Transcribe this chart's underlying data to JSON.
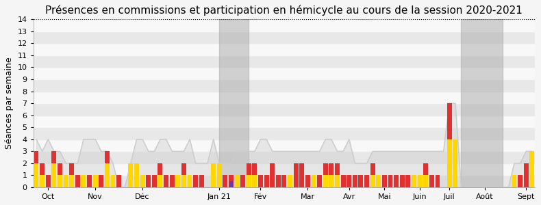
{
  "title": "Présences en commissions et participation en hémicycle au cours de la session 2020-2021",
  "ylabel": "Séances par semaine",
  "ylim": [
    0,
    14
  ],
  "yticks": [
    0,
    1,
    2,
    3,
    4,
    5,
    6,
    7,
    8,
    9,
    10,
    11,
    12,
    13,
    14
  ],
  "xlabel_months": [
    "Oct",
    "Nov",
    "Déc",
    "Jan 21",
    "Fév",
    "Mar",
    "Avr",
    "Mai",
    "Juin",
    "Juil",
    "Août",
    "Sept"
  ],
  "background_color": "#f5f5f5",
  "shade_regions": [
    {
      "xstart": 31,
      "xend": 36
    },
    {
      "xstart": 72,
      "xend": 79
    }
  ],
  "gray_line": [
    4,
    3,
    4,
    3,
    3,
    2,
    2,
    2,
    4,
    4,
    4,
    3,
    3,
    2,
    0,
    0,
    2,
    4,
    4,
    3,
    3,
    4,
    4,
    3,
    3,
    3,
    4,
    2,
    2,
    2,
    4,
    2,
    2,
    2,
    3,
    3,
    3,
    3,
    4,
    4,
    3,
    3,
    3,
    3,
    3,
    3,
    3,
    3,
    3,
    4,
    4,
    3,
    3,
    4,
    2,
    2,
    2,
    3,
    3,
    3,
    3,
    3,
    3,
    3,
    3,
    3,
    3,
    3,
    3,
    3,
    7,
    7,
    0,
    0,
    0,
    0,
    0,
    0,
    0,
    0,
    0,
    2,
    2,
    3,
    3
  ],
  "yellow_bars": [
    2,
    1,
    0,
    2,
    1,
    1,
    1,
    0,
    1,
    0,
    1,
    0,
    2,
    1,
    0,
    0,
    2,
    2,
    1,
    0,
    0,
    1,
    0,
    0,
    1,
    1,
    1,
    0,
    0,
    0,
    2,
    2,
    0,
    0,
    1,
    0,
    1,
    1,
    0,
    0,
    0,
    0,
    0,
    1,
    0,
    0,
    0,
    1,
    0,
    1,
    1,
    1,
    0,
    0,
    0,
    0,
    0,
    1,
    1,
    0,
    0,
    0,
    0,
    0,
    1,
    1,
    1,
    0,
    0,
    0,
    4,
    4,
    0,
    0,
    0,
    0,
    0,
    0,
    0,
    0,
    0,
    1,
    0,
    0,
    3
  ],
  "red_bars": [
    3,
    2,
    1,
    3,
    2,
    1,
    2,
    1,
    1,
    1,
    1,
    1,
    3,
    1,
    1,
    0,
    2,
    2,
    1,
    1,
    1,
    2,
    1,
    1,
    1,
    2,
    1,
    1,
    1,
    0,
    2,
    2,
    1,
    1,
    1,
    1,
    2,
    2,
    1,
    1,
    2,
    1,
    1,
    1,
    2,
    2,
    1,
    1,
    1,
    2,
    2,
    2,
    1,
    1,
    1,
    1,
    1,
    2,
    1,
    1,
    1,
    1,
    1,
    1,
    1,
    1,
    2,
    1,
    1,
    0,
    7,
    4,
    0,
    0,
    0,
    0,
    0,
    0,
    0,
    0,
    0,
    1,
    1,
    2,
    3
  ],
  "blue_bar_idx": 33,
  "blue_bar_val": 0.5,
  "stripe_colors": [
    "#e8e8e8",
    "#f8f8f8"
  ],
  "title_fontsize": 11,
  "ylabel_fontsize": 9,
  "tick_fontsize": 8
}
